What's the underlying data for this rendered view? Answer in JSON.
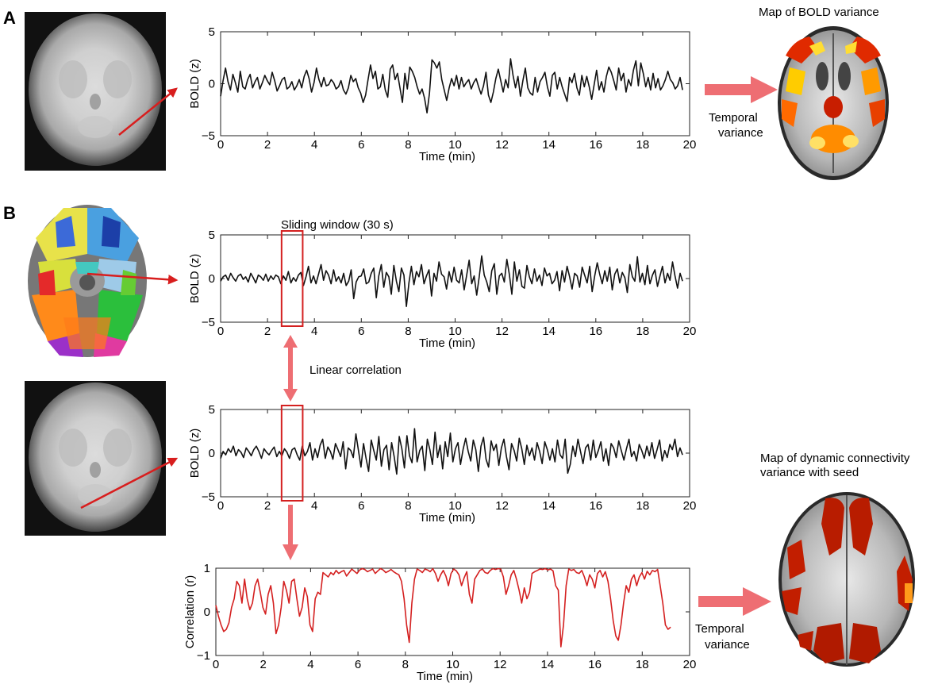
{
  "panels": {
    "a_label": "A",
    "b_label": "B"
  },
  "annotations": {
    "map_bold_variance": "Map of BOLD variance",
    "temporal_variance_line1": "Temporal",
    "temporal_variance_line2": "variance",
    "sliding_window": "Sliding window (30 s)",
    "linear_correlation": "Linear correlation",
    "map_dyn_line1": "Map of dynamic connectivity",
    "map_dyn_line2": "variance with seed"
  },
  "colors": {
    "signal": "#111111",
    "correlation": "#d42020",
    "arrow_pink": "#ee6e73",
    "window_box": "#d42020",
    "arrow_red": "#d81e1e"
  },
  "chart_data": [
    {
      "type": "line",
      "panel": "A",
      "xlabel": "Time (min)",
      "ylabel": "BOLD (z)",
      "xlim": [
        0,
        20
      ],
      "ylim": [
        -5,
        5
      ],
      "xticks": [
        0,
        2,
        4,
        6,
        8,
        10,
        12,
        14,
        16,
        18,
        20
      ],
      "yticks": [
        -5,
        0,
        5
      ],
      "series": [
        {
          "values": [
            -1.2,
            0.3,
            1.5,
            0.2,
            -0.6,
            0.9,
            0.1,
            -0.8,
            1.2,
            -0.3,
            -0.5,
            0.4,
            0.9,
            -0.4,
            0.2,
            0.6,
            -0.5,
            0.1,
            0.8,
            0.3,
            -0.1,
            1.1,
            0.3,
            -0.7,
            -0.2,
            0.4,
            0.6,
            -0.5,
            -0.3,
            0.2,
            -0.6,
            -0.2,
            0.4,
            -0.4,
            0.7,
            1.3,
            0.5,
            -0.8,
            0.1,
            1.5,
            0.4,
            -0.3,
            0.6,
            -0.2,
            -0.1,
            0.4,
            0.1,
            -0.5,
            -0.3,
            0.3,
            -0.6,
            -1.0,
            -0.4,
            0.8,
            0.2,
            0.5,
            -0.4,
            -0.9,
            -1.8,
            -1.1,
            0.4,
            1.8,
            0.5,
            1.2,
            -0.5,
            -0.3,
            0.9,
            -0.6,
            -1.3,
            1.4,
            1.8,
            0.4,
            1.0,
            -0.4,
            -1.8,
            1.0,
            -0.5,
            1.6,
            1.2,
            0.6,
            -0.3,
            -1.0,
            -0.5,
            -1.4,
            -2.8,
            -0.9,
            2.3,
            2.0,
            1.5,
            2.1,
            0.4,
            -0.6,
            -1.6,
            -0.4,
            0.5,
            -0.2,
            0.8,
            -0.5,
            0.6,
            -0.3,
            0.1,
            0.4,
            -0.5,
            0.1,
            0.5,
            -0.3,
            -1.0,
            -0.2,
            1.1,
            -1.1,
            -1.8,
            -0.8,
            0.5,
            1.4,
            0.3,
            -0.8,
            0.4,
            -0.4,
            2.4,
            0.8,
            -0.4,
            0.7,
            -1.2,
            0.3,
            1.5,
            -0.4,
            -0.9,
            -1.1,
            0.6,
            -0.8,
            0.2,
            0.6,
            1.1,
            -0.3,
            -1.2,
            0.8,
            1.1,
            -0.5,
            0.6,
            -0.3,
            -1.0,
            -1.7,
            0.6,
            0.1,
            1.0,
            -0.4,
            -1.1,
            0.8,
            -0.3,
            0.7,
            -0.3,
            -1.5,
            -0.1,
            1.3,
            -0.6,
            0.2,
            -0.8,
            0.7,
            1.6,
            1.1,
            0.3,
            -0.6,
            1.5,
            0.3,
            1.0,
            -0.8,
            0.4,
            -0.2,
            1.3,
            2.2,
            -0.2,
            2.0,
            1.0,
            -0.3,
            0.6,
            -0.6,
            1.0,
            -0.4,
            0.5,
            -0.6,
            -0.2,
            0.4,
            1.2,
            0.4,
            0.1,
            -0.5,
            -0.2,
            0.6,
            -0.6
          ]
        }
      ]
    },
    {
      "type": "line",
      "panel": "B-top",
      "xlabel": "Time (min)",
      "ylabel": "BOLD (z)",
      "xlim": [
        0,
        20
      ],
      "ylim": [
        -5,
        5
      ],
      "xticks": [
        0,
        2,
        4,
        6,
        8,
        10,
        12,
        14,
        16,
        18,
        20
      ],
      "yticks": [
        -5,
        0,
        5
      ],
      "sliding_window_x": [
        2.6,
        3.5
      ],
      "series": [
        {
          "values": [
            -0.3,
            0.2,
            0.4,
            -0.2,
            0.6,
            0.1,
            -0.3,
            0.3,
            0.5,
            -0.1,
            0.2,
            -0.4,
            0.6,
            0.1,
            -0.5,
            0.4,
            0.2,
            -0.2,
            0.5,
            -0.3,
            0.3,
            -0.1,
            0.4,
            0.2,
            -0.6,
            0.3,
            -0.2,
            0.8,
            -0.5,
            0.1,
            -0.3,
            0.4,
            0.7,
            -0.8,
            0.2,
            1.4,
            -0.5,
            0.3,
            -0.6,
            0.5,
            1.6,
            -0.2,
            0.9,
            0.4,
            -0.6,
            1.0,
            -0.3,
            0.2,
            -0.5,
            0.6,
            -0.8,
            -0.3,
            1.0,
            -2.3,
            -0.4,
            0.2,
            0.3,
            1.1,
            -0.6,
            -0.4,
            0.6,
            1.2,
            -2.2,
            0.3,
            1.6,
            -1.0,
            0.7,
            0.2,
            -1.8,
            1.5,
            -0.3,
            -1.5,
            1.2,
            0.4,
            -3.2,
            -0.5,
            1.4,
            -0.7,
            0.8,
            0.2,
            1.6,
            -0.6,
            0.3,
            1.0,
            -2.0,
            0.6,
            -0.3,
            1.9,
            0.5,
            0.2,
            -1.2,
            0.8,
            -0.4,
            1.3,
            -0.2,
            -0.5,
            1.0,
            -1.3,
            0.4,
            2.1,
            -0.6,
            0.3,
            -1.9,
            0.2,
            2.6,
            0.4,
            -0.4,
            -1.5,
            0.9,
            1.7,
            -1.8,
            0.3,
            0.6,
            -0.4,
            2.2,
            0.5,
            -1.8,
            1.9,
            -0.3,
            1.0,
            -0.9,
            -1.1,
            1.5,
            0.2,
            -0.6,
            1.1,
            -0.3,
            0.4,
            -0.8,
            1.2,
            0.3,
            0.6,
            -0.6,
            -0.2,
            0.8,
            -1.4,
            0.9,
            -0.4,
            1.4,
            0.2,
            -1.2,
            0.6,
            0.3,
            -1.0,
            1.3,
            0.4,
            -0.5,
            1.4,
            -1.5,
            0.3,
            1.8,
            0.5,
            -0.6,
            0.9,
            -0.3,
            1.3,
            -1.3,
            0.5,
            1.1,
            -0.5,
            0.7,
            0.1,
            -1.6,
            1.6,
            0.2,
            -0.3,
            2.5,
            -0.4,
            0.6,
            -0.7,
            1.5,
            -0.6,
            0.4,
            1.0,
            -0.9,
            0.3,
            1.4,
            -0.5,
            0.6,
            -0.2,
            1.9,
            0.3,
            -1.1,
            0.6,
            -0.3
          ]
        }
      ]
    },
    {
      "type": "line",
      "panel": "B-middle",
      "xlabel": "Time (min)",
      "ylabel": "BOLD (z)",
      "xlim": [
        0,
        20
      ],
      "ylim": [
        -5,
        5
      ],
      "xticks": [
        0,
        2,
        4,
        6,
        8,
        10,
        12,
        14,
        16,
        18,
        20
      ],
      "yticks": [
        -5,
        0,
        5
      ],
      "sliding_window_x": [
        2.6,
        3.5
      ],
      "series": [
        {
          "values": [
            -0.6,
            0.2,
            -0.2,
            0.5,
            0.1,
            0.8,
            -0.3,
            0.4,
            0.1,
            -0.5,
            0.6,
            0.2,
            -0.3,
            0.4,
            0.8,
            0.2,
            -0.6,
            0.5,
            0.1,
            -0.2,
            0.3,
            0.7,
            -0.4,
            0.2,
            -0.3,
            0.5,
            0.1,
            -0.6,
            0.4,
            0.6,
            -0.2,
            -0.8,
            0.8,
            -0.3,
            0.2,
            1.2,
            -0.8,
            0.5,
            -0.5,
            0.9,
            1.6,
            -0.6,
            0.7,
            0.2,
            -0.7,
            1.1,
            0.4,
            -0.4,
            1.3,
            -1.8,
            0.6,
            0.3,
            -0.5,
            2.2,
            0.3,
            -1.6,
            1.1,
            -0.6,
            -2.1,
            1.5,
            0.3,
            -0.8,
            1.9,
            -1.5,
            0.4,
            0.9,
            -1.9,
            1.2,
            -0.4,
            -2.4,
            1.9,
            0.5,
            -1.7,
            2.0,
            -0.3,
            -1.1,
            2.8,
            -1.0,
            0.3,
            0.8,
            -2.0,
            1.6,
            0.4,
            -1.3,
            2.4,
            -0.5,
            0.9,
            -1.8,
            1.3,
            -0.4,
            2.3,
            -1.0,
            0.5,
            1.2,
            -1.3,
            0.4,
            1.7,
            0.2,
            -0.9,
            1.5,
            0.4,
            -2.1,
            0.8,
            1.8,
            -0.7,
            -1.6,
            1.4,
            0.3,
            1.0,
            -1.4,
            0.6,
            1.6,
            -0.4,
            -1.9,
            1.1,
            0.3,
            -0.9,
            1.7,
            0.5,
            -1.3,
            0.9,
            -0.3,
            0.6,
            -0.8,
            1.2,
            0.2,
            -1.2,
            1.3,
            0.4,
            -0.8,
            0.5,
            -1.0,
            1.5,
            -0.2,
            -0.6,
            1.6,
            -2.3,
            -1.3,
            0.8,
            -0.4,
            1.6,
            0.2,
            -1.2,
            0.6,
            1.0,
            -0.8,
            1.5,
            -0.5,
            0.3,
            1.3,
            -0.9,
            0.5,
            -1.4,
            1.1,
            0.6,
            -0.5,
            1.4,
            0.3,
            -0.8,
            0.5,
            1.6,
            -0.4,
            0.2,
            -0.9,
            1.0,
            0.3,
            -0.6,
            0.8,
            -0.3,
            1.2,
            -0.6,
            0.4,
            1.5,
            -0.9,
            0.3,
            -0.5,
            1.0,
            0.4,
            1.6,
            -0.4,
            0.6,
            -0.2
          ]
        }
      ]
    },
    {
      "type": "line",
      "panel": "B-bottom",
      "xlabel": "Time (min)",
      "ylabel": "Correlation (r)",
      "xlim": [
        0,
        20
      ],
      "ylim": [
        -1,
        1
      ],
      "xticks": [
        0,
        2,
        4,
        6,
        8,
        10,
        12,
        14,
        16,
        18,
        20
      ],
      "yticks": [
        -1,
        0,
        1
      ],
      "series": [
        {
          "values": [
            0.15,
            -0.1,
            -0.3,
            -0.45,
            -0.4,
            -0.25,
            0.1,
            0.3,
            0.7,
            0.6,
            0.2,
            0.75,
            0.3,
            0.05,
            0.2,
            0.6,
            0.75,
            0.45,
            0.1,
            -0.05,
            0.4,
            0.6,
            0.2,
            -0.5,
            -0.3,
            0.1,
            0.7,
            0.5,
            0.2,
            0.7,
            0.75,
            0.3,
            -0.1,
            0.1,
            0.55,
            0.35,
            -0.3,
            -0.45,
            0.3,
            0.45,
            0.4,
            0.9,
            0.85,
            0.8,
            0.9,
            0.85,
            0.95,
            0.88,
            0.92,
            0.95,
            0.82,
            0.9,
            0.98,
            0.93,
            0.88,
            0.96,
            0.99,
            0.97,
            0.92,
            0.95,
            0.98,
            0.88,
            0.94,
            0.99,
            0.96,
            0.9,
            0.93,
            0.97,
            0.92,
            0.88,
            0.85,
            0.7,
            0.3,
            -0.3,
            -0.7,
            0.2,
            0.75,
            0.98,
            0.95,
            0.9,
            0.98,
            0.96,
            0.92,
            0.99,
            0.88,
            0.7,
            0.85,
            0.95,
            0.82,
            0.6,
            0.88,
            0.98,
            0.94,
            0.85,
            0.6,
            0.78,
            0.92,
            0.4,
            0.2,
            0.75,
            0.85,
            0.95,
            0.98,
            0.9,
            0.88,
            0.95,
            0.99,
            0.97,
            0.99,
            0.98,
            0.8,
            0.4,
            0.6,
            0.85,
            0.95,
            0.75,
            0.5,
            0.2,
            0.55,
            0.3,
            0.45,
            0.88,
            0.92,
            0.95,
            0.98,
            0.97,
            0.99,
            0.96,
            0.98,
            0.94,
            0.6,
            0.5,
            -0.8,
            -0.3,
            0.6,
            0.98,
            0.95,
            0.97,
            0.9,
            0.88,
            0.95,
            0.8,
            0.6,
            0.85,
            0.75,
            0.55,
            0.88,
            0.95,
            0.8,
            0.92,
            0.7,
            0.3,
            -0.2,
            -0.55,
            -0.65,
            -0.3,
            0.2,
            0.6,
            0.45,
            0.75,
            0.85,
            0.6,
            0.8,
            0.9,
            0.75,
            0.93,
            0.85,
            0.95,
            0.92,
            0.97,
            0.6,
            0.2,
            -0.3,
            -0.4,
            -0.35
          ]
        }
      ]
    }
  ]
}
